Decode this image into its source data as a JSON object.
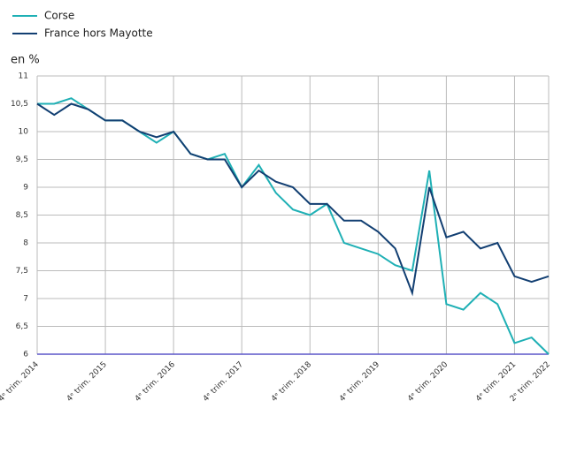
{
  "chart_data": {
    "type": "line",
    "y_label": "en %",
    "categories": [
      "4ᵉ trim. 2014",
      null,
      null,
      null,
      "4ᵉ trim. 2015",
      null,
      null,
      null,
      "4ᵉ trim. 2016",
      null,
      null,
      null,
      "4ᵉ trim. 2017",
      null,
      null,
      null,
      "4ᵉ trim. 2018",
      null,
      null,
      null,
      "4ᵉ trim. 2019",
      null,
      null,
      null,
      "4ᵉ trim. 2020",
      null,
      null,
      null,
      "4ᵉ trim. 2021",
      null,
      "2ᵉ trim. 2022"
    ],
    "series": [
      {
        "name": "Corse",
        "color": "#1fb0b5",
        "values": [
          10.5,
          10.5,
          10.6,
          10.4,
          10.2,
          10.2,
          10.0,
          9.8,
          10.0,
          9.6,
          9.5,
          9.6,
          9.0,
          9.4,
          8.9,
          8.6,
          8.5,
          8.7,
          8.0,
          7.9,
          7.8,
          7.6,
          7.5,
          9.3,
          6.9,
          6.8,
          7.1,
          6.9,
          6.2,
          6.3,
          6.0
        ]
      },
      {
        "name": "France hors Mayotte",
        "color": "#123f72",
        "values": [
          10.5,
          10.3,
          10.5,
          10.4,
          10.2,
          10.2,
          10.0,
          9.9,
          10.0,
          9.6,
          9.5,
          9.5,
          9.0,
          9.3,
          9.1,
          9.0,
          8.7,
          8.7,
          8.4,
          8.4,
          8.2,
          7.9,
          7.1,
          9.0,
          8.1,
          8.2,
          7.9,
          8.0,
          7.4,
          7.3,
          7.4
        ]
      }
    ],
    "ylim": [
      6,
      11
    ],
    "yticks": [
      6,
      {
        "value": 6.5,
        "label": "6,5"
      },
      7,
      {
        "value": 7.5,
        "label": "7,5"
      },
      8,
      {
        "value": 8.5,
        "label": "8,5"
      },
      9,
      {
        "value": 9.5,
        "label": "9,5"
      },
      10,
      {
        "value": 10.5,
        "label": "10,5"
      },
      11
    ],
    "grid": true
  }
}
